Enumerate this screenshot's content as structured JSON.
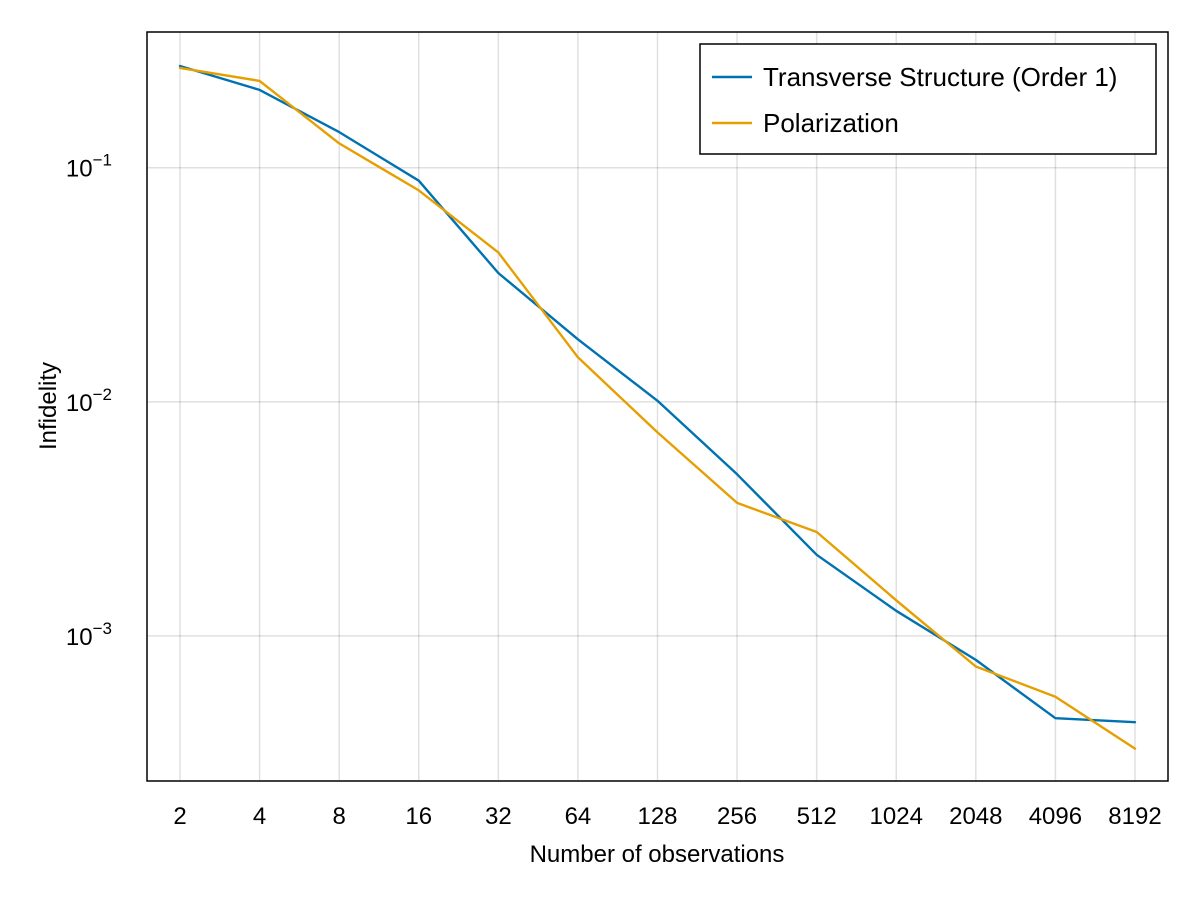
{
  "chart_data": {
    "type": "line",
    "title": "",
    "xlabel": "Number of observations",
    "ylabel": "Infidelity",
    "x_scale": "log2",
    "y_scale": "log10",
    "x": [
      2,
      4,
      8,
      16,
      32,
      64,
      128,
      256,
      512,
      1024,
      2048,
      4096,
      8192
    ],
    "x_tick_labels": [
      "2",
      "4",
      "8",
      "16",
      "32",
      "64",
      "128",
      "256",
      "512",
      "1024",
      "2048",
      "4096",
      "8192"
    ],
    "y_ticks": [
      {
        "value": 0.1,
        "base": "10",
        "exp": "−1"
      },
      {
        "value": 0.01,
        "base": "10",
        "exp": "−2"
      },
      {
        "value": 0.001,
        "base": "10",
        "exp": "−3"
      }
    ],
    "xlim": [
      1.5,
      10922
    ],
    "ylim": [
      0.00024,
      0.38
    ],
    "grid": true,
    "legend_position": "top-right",
    "series": [
      {
        "name": "Transverse Structure (Order 1)",
        "color": "#0072b2",
        "values": [
          0.272,
          0.215,
          0.142,
          0.088,
          0.0355,
          0.0185,
          0.0101,
          0.0049,
          0.00222,
          0.00128,
          0.00079,
          0.000445,
          0.000428
        ]
      },
      {
        "name": "Polarization",
        "color": "#e69f00",
        "values": [
          0.267,
          0.235,
          0.127,
          0.08,
          0.0435,
          0.0155,
          0.0074,
          0.0037,
          0.00278,
          0.00142,
          0.00074,
          0.00055,
          0.00033
        ]
      }
    ]
  }
}
